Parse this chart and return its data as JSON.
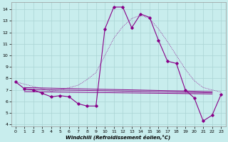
{
  "xlabel": "Windchill (Refroidissement éolien,°C)",
  "background_color": "#c8eded",
  "grid_color": "#aad4d4",
  "line_color": "#880088",
  "xlim": [
    -0.5,
    23.5
  ],
  "ylim": [
    3.8,
    14.6
  ],
  "yticks": [
    4,
    5,
    6,
    7,
    8,
    9,
    10,
    11,
    12,
    13,
    14
  ],
  "xticks": [
    0,
    1,
    2,
    3,
    4,
    5,
    6,
    7,
    8,
    9,
    10,
    11,
    12,
    13,
    14,
    15,
    16,
    17,
    18,
    19,
    20,
    21,
    22,
    23
  ],
  "main_line": {
    "x": [
      0,
      1,
      2,
      3,
      4,
      5,
      6,
      7,
      8,
      9,
      10,
      11,
      12,
      13,
      14,
      15,
      16,
      17,
      18,
      19,
      20,
      21,
      22,
      23
    ],
    "y": [
      7.7,
      7.1,
      7.0,
      6.7,
      6.4,
      6.5,
      6.4,
      5.8,
      5.6,
      5.6,
      12.3,
      14.2,
      14.2,
      12.4,
      13.6,
      13.3,
      11.3,
      9.5,
      9.3,
      7.0,
      6.3,
      4.3,
      4.8,
      6.6
    ]
  },
  "smooth_line": {
    "x": [
      0,
      1,
      2,
      3,
      4,
      5,
      6,
      7,
      8,
      9,
      10,
      11,
      12,
      13,
      14,
      15,
      16,
      17,
      18,
      19,
      20,
      21,
      22,
      23
    ],
    "y": [
      7.7,
      7.5,
      7.3,
      7.1,
      6.9,
      7.0,
      7.2,
      7.4,
      7.9,
      8.5,
      10.0,
      11.5,
      12.5,
      13.2,
      13.5,
      13.2,
      12.3,
      11.2,
      10.0,
      8.8,
      7.8,
      7.2,
      7.0,
      6.8
    ]
  },
  "regression1": {
    "x": [
      1,
      22
    ],
    "y": [
      7.2,
      6.85
    ]
  },
  "regression2": {
    "x": [
      1,
      22
    ],
    "y": [
      7.05,
      6.75
    ]
  },
  "regression3": {
    "x": [
      1,
      22
    ],
    "y": [
      6.85,
      6.65
    ]
  }
}
